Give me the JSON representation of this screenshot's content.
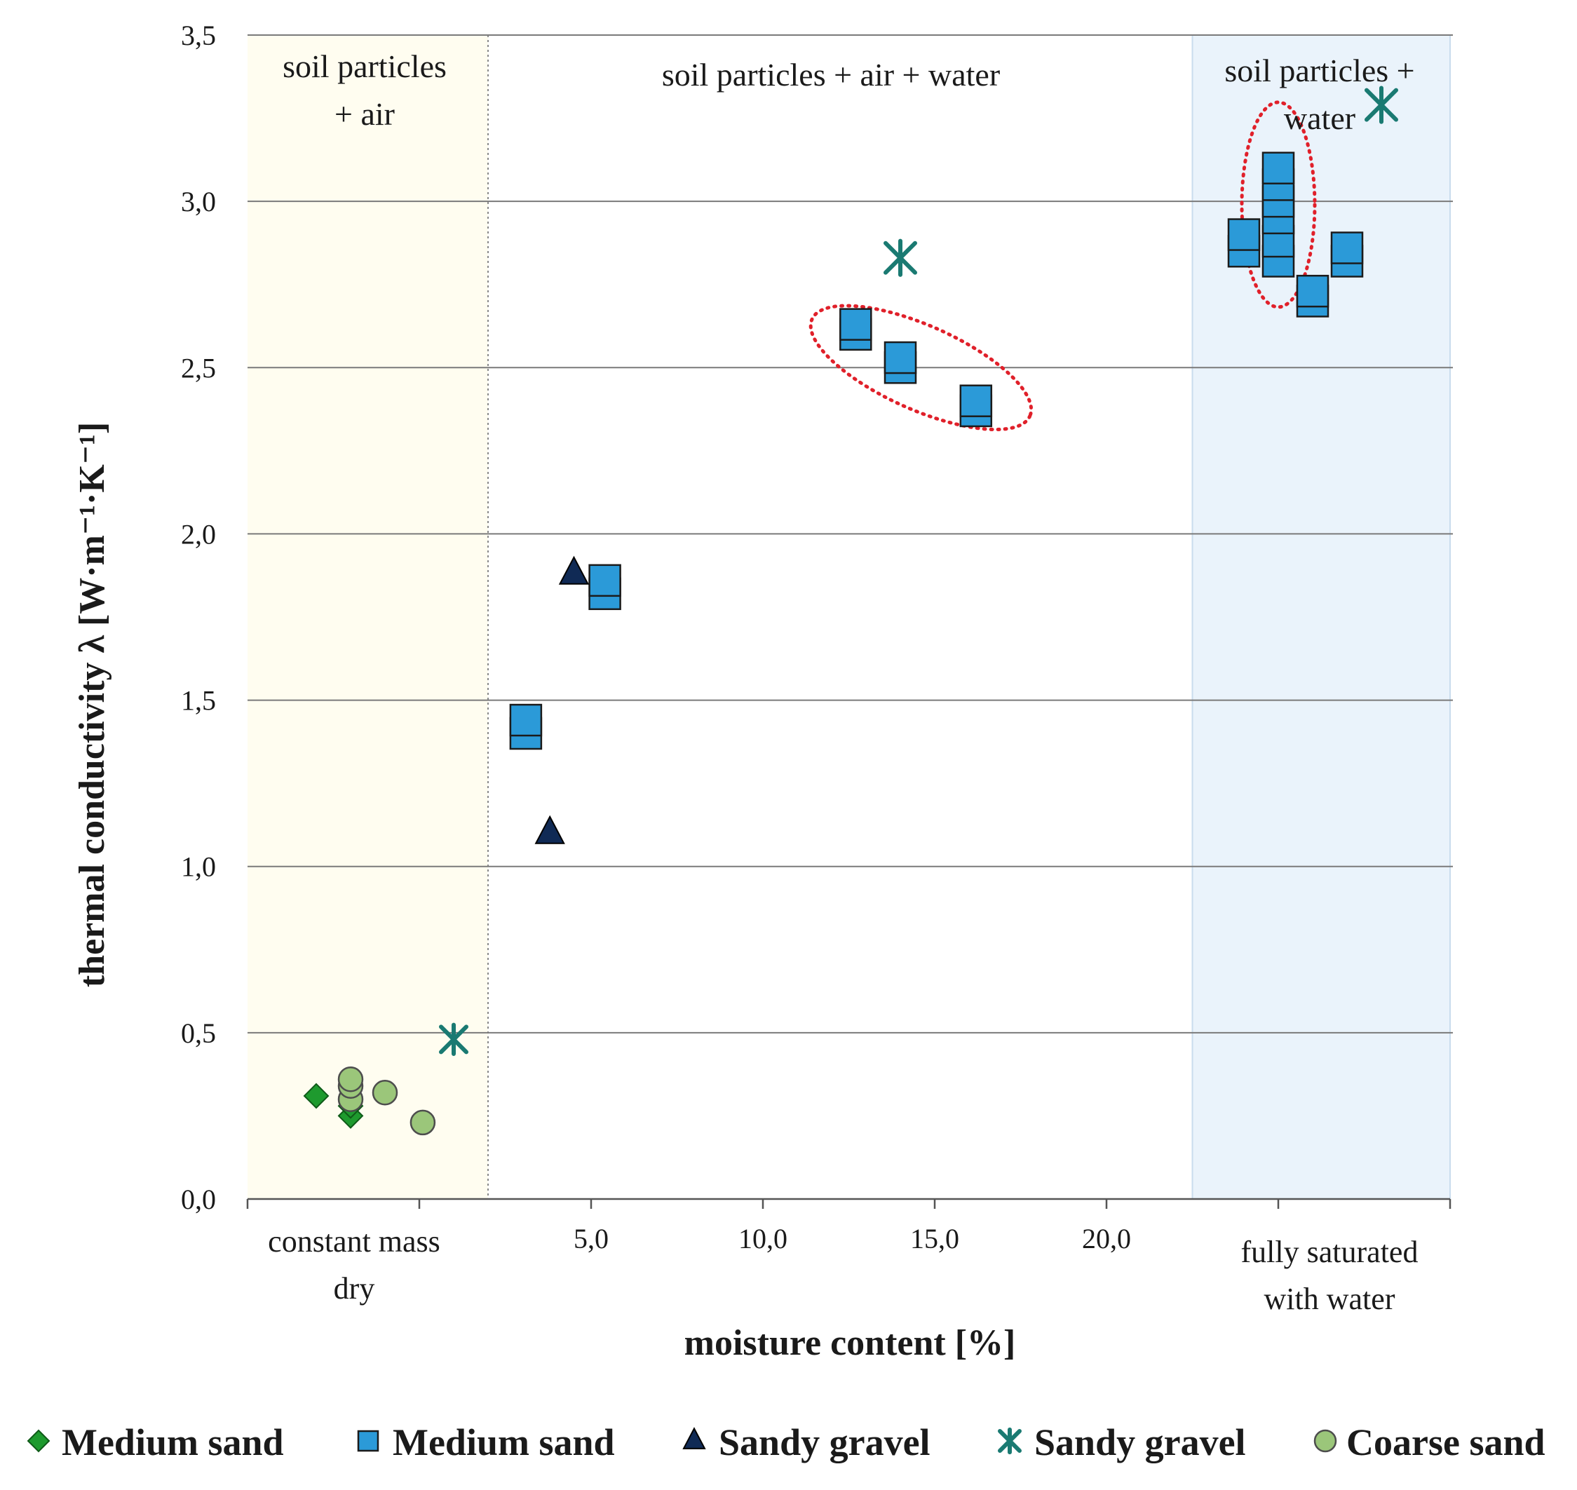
{
  "chart_data": {
    "type": "scatter",
    "title": "",
    "xlabel": "moisture content [%]",
    "ylabel": "thermal conductivity λ [W·m⁻¹·K⁻¹]",
    "xlim": [
      -5,
      30
    ],
    "ylim": [
      0,
      3.5
    ],
    "grid": true,
    "legend_position": "bottom",
    "x_ticks": [
      {
        "value": -5,
        "label": ""
      },
      {
        "value": 0,
        "label": ""
      },
      {
        "value": 5,
        "label": "5,0"
      },
      {
        "value": 10,
        "label": "10,0"
      },
      {
        "value": 15,
        "label": "15,0"
      },
      {
        "value": 20,
        "label": "20,0"
      },
      {
        "value": 25,
        "label": ""
      },
      {
        "value": 30,
        "label": ""
      }
    ],
    "y_ticks": [
      {
        "value": 0,
        "label": "0,0"
      },
      {
        "value": 0.5,
        "label": "0,5"
      },
      {
        "value": 1.0,
        "label": "1,0"
      },
      {
        "value": 1.5,
        "label": "1,5"
      },
      {
        "value": 2.0,
        "label": "2,0"
      },
      {
        "value": 2.5,
        "label": "2,5"
      },
      {
        "value": 3.0,
        "label": "3,0"
      },
      {
        "value": 3.5,
        "label": "3,5"
      }
    ],
    "zones": [
      {
        "name": "dry",
        "x_range": [
          -5,
          2
        ],
        "color": "#fffdf0",
        "label_lines": [
          "soil particles",
          "+ air"
        ],
        "bottom_lines": [
          "constant mass",
          "dry"
        ]
      },
      {
        "name": "partial",
        "x_range": [
          2,
          22.5
        ],
        "color": "#ffffff",
        "label_lines": [
          "soil particles + air + water"
        ],
        "bottom_lines": []
      },
      {
        "name": "saturated",
        "x_range": [
          22.5,
          30
        ],
        "color": "#eaf3fb",
        "label_lines": [
          "soil particles +",
          "water"
        ],
        "bottom_lines": [
          "fully saturated",
          "with water"
        ]
      }
    ],
    "series": [
      {
        "name": "Medium sand",
        "marker": "diamond",
        "color": "#1e9a2e",
        "points": [
          [
            -3,
            0.31
          ],
          [
            -2,
            0.25
          ],
          [
            -2,
            0.28
          ]
        ]
      },
      {
        "name": "Medium sand",
        "marker": "square",
        "color": "#2b9ad8",
        "points": [
          [
            3.1,
            1.4
          ],
          [
            3.1,
            1.44
          ],
          [
            5.4,
            1.82
          ],
          [
            5.4,
            1.86
          ],
          [
            12.7,
            2.6
          ],
          [
            12.7,
            2.63
          ],
          [
            14.0,
            2.5
          ],
          [
            14.0,
            2.53
          ],
          [
            16.2,
            2.37
          ],
          [
            16.2,
            2.4
          ],
          [
            24.0,
            2.85
          ],
          [
            24.0,
            2.9
          ],
          [
            25.0,
            2.82
          ],
          [
            25.0,
            2.88
          ],
          [
            25.0,
            2.95
          ],
          [
            25.0,
            3.0
          ],
          [
            25.0,
            3.05
          ],
          [
            25.0,
            3.1
          ],
          [
            26.0,
            2.7
          ],
          [
            26.0,
            2.73
          ],
          [
            27.0,
            2.82
          ],
          [
            27.0,
            2.86
          ]
        ]
      },
      {
        "name": "Sandy gravel",
        "marker": "triangle",
        "color": "#102a55",
        "points": [
          [
            3.8,
            1.1
          ],
          [
            4.5,
            1.88
          ]
        ]
      },
      {
        "name": "Sandy gravel",
        "marker": "asterisk",
        "color": "#1a7a72",
        "points": [
          [
            1.0,
            0.48
          ],
          [
            14.0,
            2.83
          ],
          [
            28.0,
            3.29
          ]
        ]
      },
      {
        "name": "Coarse sand",
        "marker": "circle",
        "color": "#9bc67a",
        "points": [
          [
            -2.0,
            0.3
          ],
          [
            -2.0,
            0.34
          ],
          [
            -2.0,
            0.36
          ],
          [
            -1.0,
            0.32
          ],
          [
            0.1,
            0.23
          ]
        ]
      }
    ],
    "annotations": [
      {
        "type": "dotted-ellipse",
        "color": "#e0202a",
        "center": [
          14.6,
          2.5
        ],
        "around": "medium sand 13-16 %"
      },
      {
        "type": "dotted-ellipse",
        "color": "#e0202a",
        "center": [
          25.0,
          2.99
        ],
        "around": "medium sand saturated"
      }
    ]
  }
}
